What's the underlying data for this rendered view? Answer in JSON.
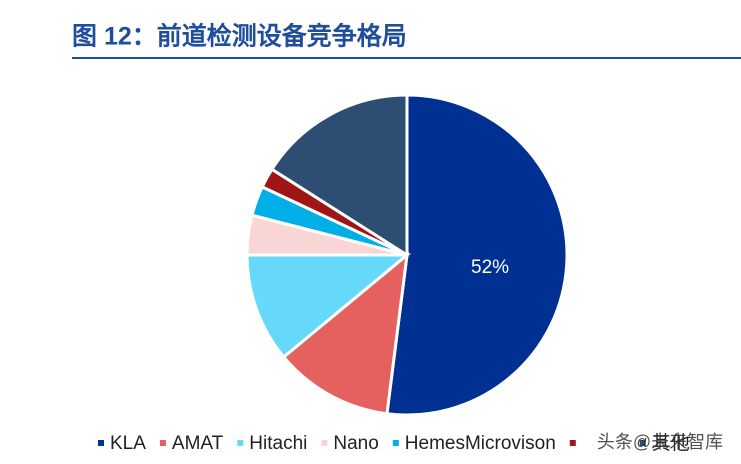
{
  "chart_data": {
    "type": "pie",
    "title": "图 12：前道检测设备竞争格局",
    "categories": [
      "KLA",
      "AMAT",
      "Hitachi",
      "Nano",
      "HemesMicrovison",
      null,
      "其他"
    ],
    "values": [
      52,
      12,
      11,
      4,
      3,
      2,
      16
    ],
    "value_labels": [
      "52%",
      null,
      null,
      null,
      null,
      null,
      null
    ],
    "colors": [
      "#003192",
      "#e46160",
      "#66d9fb",
      "#f9d5d5",
      "#00aee8",
      "#a01616",
      "#2d4d73"
    ],
    "watermark": "头条@未来智库"
  }
}
